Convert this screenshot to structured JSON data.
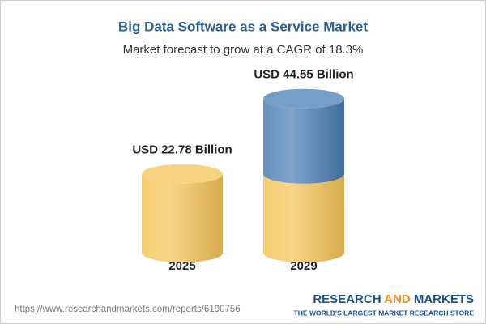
{
  "chart_data": {
    "type": "cylinder",
    "title": "Big Data Software as a Service Market",
    "subtitle": "Market forecast to grow at a CAGR of 18.3%",
    "categories": [
      "2025",
      "2029"
    ],
    "values": [
      22.78,
      44.55
    ],
    "value_labels": [
      "USD 22.78 Billion",
      "USD 44.55 Billion"
    ],
    "colors": [
      "#f4c457",
      "#4a7db3"
    ]
  },
  "footer": {
    "url": "https://www.researchandmarkets.com/reports/6190756",
    "logo": [
      "RESEARCH",
      "AND",
      "MARKETS"
    ],
    "tagline": "THE WORLD'S LARGEST MARKET RESEARCH STORE"
  }
}
